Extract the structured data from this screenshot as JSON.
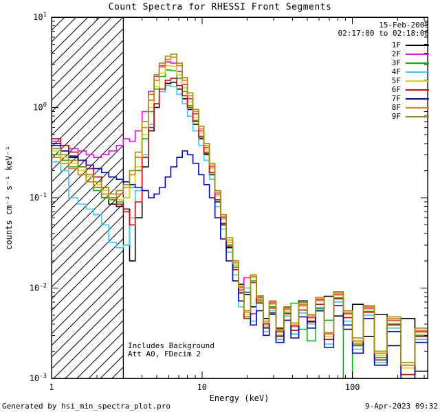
{
  "title": "Count Spectra for RHESSI Front Segments",
  "legend": {
    "date": "15-Feb-2005",
    "time_range": "02:17:00 to 02:18:00"
  },
  "notes": {
    "line1": "Includes Background",
    "line2": "Att A0, FDecim 2"
  },
  "footer": {
    "left": "Generated by hsi_min_spectra_plot.pro",
    "right": "9-Apr-2023 09:32"
  },
  "chart_data": {
    "type": "line",
    "mode": "step-histogram",
    "title": "Count Spectra for RHESSI Front Segments",
    "xlabel": "Energy (keV)",
    "ylabel": "counts cm⁻² s⁻¹ keV⁻¹",
    "xscale": "log",
    "yscale": "log",
    "xlim": [
      1,
      316
    ],
    "ylim": [
      0.001,
      10
    ],
    "x_ticks": [
      1,
      10,
      100
    ],
    "y_ticks": [
      0.001,
      0.01,
      0.1,
      1,
      10
    ],
    "grid": false,
    "legend_position": "top-right",
    "excluded_region": {
      "xmin": 1,
      "xmax": 3,
      "style": "hatched"
    },
    "x": [
      1.0,
      1.15,
      1.3,
      1.5,
      1.7,
      1.9,
      2.15,
      2.4,
      2.7,
      3.0,
      3.3,
      3.6,
      4.0,
      4.4,
      4.8,
      5.2,
      5.7,
      6.2,
      6.8,
      7.4,
      8.0,
      8.7,
      9.5,
      10.3,
      11.2,
      12.2,
      13.3,
      14.5,
      16,
      17.5,
      19,
      21,
      23,
      25.5,
      28,
      31,
      35,
      39,
      44,
      50,
      57,
      65,
      75,
      87,
      100,
      118,
      140,
      170,
      210,
      260
    ],
    "series": [
      {
        "name": "1F",
        "color": "#000000",
        "values": [
          0.4,
          0.33,
          0.28,
          0.22,
          0.17,
          0.13,
          0.1,
          0.085,
          0.08,
          0.075,
          0.02,
          0.06,
          0.22,
          0.55,
          1.0,
          1.5,
          1.85,
          1.9,
          1.6,
          1.25,
          0.95,
          0.65,
          0.45,
          0.3,
          0.18,
          0.09,
          0.05,
          0.028,
          0.016,
          0.011,
          0.0085,
          0.0062,
          0.0074,
          0.0046,
          0.0053,
          0.0036,
          0.0061,
          0.0031,
          0.0072,
          0.0043,
          0.0056,
          0.0081,
          0.0049,
          0.0035,
          0.0066,
          0.0029,
          0.0051,
          0.0023,
          0.0046,
          0.0012
        ]
      },
      {
        "name": "2F",
        "color": "#ff00ff",
        "values": [
          0.42,
          0.38,
          0.35,
          0.33,
          0.3,
          0.28,
          0.3,
          0.33,
          0.38,
          0.45,
          0.42,
          0.55,
          0.9,
          1.5,
          2.2,
          2.9,
          3.2,
          3.1,
          2.5,
          1.8,
          1.25,
          0.85,
          0.55,
          0.36,
          0.22,
          0.11,
          0.06,
          0.032,
          0.018,
          0.0095,
          0.013,
          0.0052,
          0.0078,
          0.004,
          0.0068,
          0.0033,
          0.0058,
          0.0038,
          0.0064,
          0.0047,
          0.0074,
          0.0031,
          0.0085,
          0.0052,
          0.0026,
          0.006,
          0.0019,
          0.0044,
          0.0014,
          0.0033
        ]
      },
      {
        "name": "3F",
        "color": "#00bb00",
        "values": [
          0.3,
          0.26,
          0.22,
          0.18,
          0.15,
          0.12,
          0.1,
          0.095,
          0.09,
          0.1,
          0.13,
          0.2,
          0.45,
          0.9,
          1.6,
          2.2,
          2.6,
          2.55,
          2.1,
          1.5,
          1.05,
          0.72,
          0.48,
          0.32,
          0.19,
          0.095,
          0.052,
          0.03,
          0.017,
          0.009,
          0.0048,
          0.012,
          0.007,
          0.0037,
          0.0062,
          0.003,
          0.0054,
          0.0068,
          0.0035,
          0.0026,
          0.0059,
          0.0044,
          0.0078,
          0.0008,
          0.0024,
          0.0055,
          0.0017,
          0.004,
          0.0011,
          0.003
        ]
      },
      {
        "name": "4F",
        "color": "#33ccff",
        "values": [
          0.25,
          0.2,
          0.1,
          0.085,
          0.075,
          0.065,
          0.05,
          0.032,
          0.028,
          0.03,
          0.06,
          0.12,
          0.3,
          0.65,
          1.1,
          1.5,
          1.75,
          1.7,
          1.4,
          1.1,
          0.8,
          0.55,
          0.38,
          0.26,
          0.16,
          0.08,
          0.045,
          0.025,
          0.014,
          0.0062,
          0.01,
          0.0043,
          0.008,
          0.0033,
          0.0056,
          0.0027,
          0.0049,
          0.0031,
          0.0053,
          0.004,
          0.0061,
          0.0024,
          0.007,
          0.0043,
          0.0021,
          0.005,
          0.0015,
          0.0036,
          0.001,
          0.0027
        ]
      },
      {
        "name": "5F",
        "color": "#e6d200",
        "values": [
          0.33,
          0.28,
          0.24,
          0.2,
          0.17,
          0.14,
          0.12,
          0.1,
          0.095,
          0.1,
          0.14,
          0.22,
          0.5,
          1.0,
          1.7,
          2.4,
          2.9,
          2.85,
          2.3,
          1.65,
          1.15,
          0.78,
          0.52,
          0.34,
          0.21,
          0.105,
          0.058,
          0.032,
          0.018,
          0.0098,
          0.0051,
          0.013,
          0.0075,
          0.0039,
          0.0066,
          0.0032,
          0.0057,
          0.0037,
          0.0063,
          0.0046,
          0.0072,
          0.0029,
          0.0083,
          0.0051,
          0.0025,
          0.0058,
          0.0018,
          0.0043,
          0.0013,
          0.0032
        ]
      },
      {
        "name": "6F",
        "color": "#dd0000",
        "values": [
          0.45,
          0.38,
          0.32,
          0.26,
          0.21,
          0.17,
          0.13,
          0.1,
          0.085,
          0.07,
          0.05,
          0.09,
          0.28,
          0.6,
          1.1,
          1.6,
          2.0,
          2.1,
          1.75,
          1.35,
          1.0,
          0.7,
          0.47,
          0.31,
          0.19,
          0.095,
          0.052,
          0.029,
          0.016,
          0.0088,
          0.0046,
          0.0115,
          0.0068,
          0.0036,
          0.006,
          0.0029,
          0.0052,
          0.0034,
          0.0057,
          0.0042,
          0.0066,
          0.0027,
          0.0076,
          0.0047,
          0.0023,
          0.0054,
          0.0016,
          0.0039,
          0.0011,
          0.0029
        ]
      },
      {
        "name": "7F",
        "color": "#0000cc",
        "values": [
          0.38,
          0.33,
          0.29,
          0.26,
          0.23,
          0.21,
          0.19,
          0.17,
          0.16,
          0.15,
          0.14,
          0.13,
          0.12,
          0.1,
          0.11,
          0.13,
          0.17,
          0.22,
          0.28,
          0.33,
          0.3,
          0.24,
          0.18,
          0.14,
          0.1,
          0.06,
          0.035,
          0.02,
          0.012,
          0.0072,
          0.009,
          0.0039,
          0.0056,
          0.003,
          0.0051,
          0.0025,
          0.0044,
          0.0028,
          0.0048,
          0.0036,
          0.0056,
          0.0022,
          0.0064,
          0.0039,
          0.0019,
          0.0046,
          0.0014,
          0.0033,
          0.0009,
          0.0025
        ]
      },
      {
        "name": "8F",
        "color": "#e77d00",
        "values": [
          0.28,
          0.24,
          0.21,
          0.18,
          0.15,
          0.13,
          0.11,
          0.1,
          0.11,
          0.13,
          0.18,
          0.28,
          0.6,
          1.2,
          2.0,
          2.8,
          3.4,
          3.6,
          2.9,
          2.0,
          1.35,
          0.9,
          0.58,
          0.38,
          0.23,
          0.115,
          0.062,
          0.034,
          0.019,
          0.0102,
          0.0054,
          0.0135,
          0.0079,
          0.0041,
          0.007,
          0.0034,
          0.006,
          0.0039,
          0.0066,
          0.0049,
          0.0076,
          0.0031,
          0.0088,
          0.0054,
          0.0026,
          0.0062,
          0.0019,
          0.0046,
          0.0014,
          0.0034
        ]
      },
      {
        "name": "9F",
        "color": "#9a8f00",
        "values": [
          0.35,
          0.3,
          0.26,
          0.22,
          0.18,
          0.15,
          0.13,
          0.11,
          0.12,
          0.14,
          0.2,
          0.32,
          0.7,
          1.4,
          2.3,
          3.1,
          3.7,
          3.9,
          3.1,
          2.15,
          1.45,
          0.95,
          0.62,
          0.4,
          0.24,
          0.12,
          0.065,
          0.036,
          0.02,
          0.0105,
          0.0056,
          0.014,
          0.0082,
          0.0043,
          0.0072,
          0.0035,
          0.0062,
          0.0041,
          0.0069,
          0.0051,
          0.0079,
          0.0032,
          0.0091,
          0.0056,
          0.0028,
          0.0064,
          0.002,
          0.0048,
          0.0015,
          0.0036
        ]
      }
    ]
  }
}
